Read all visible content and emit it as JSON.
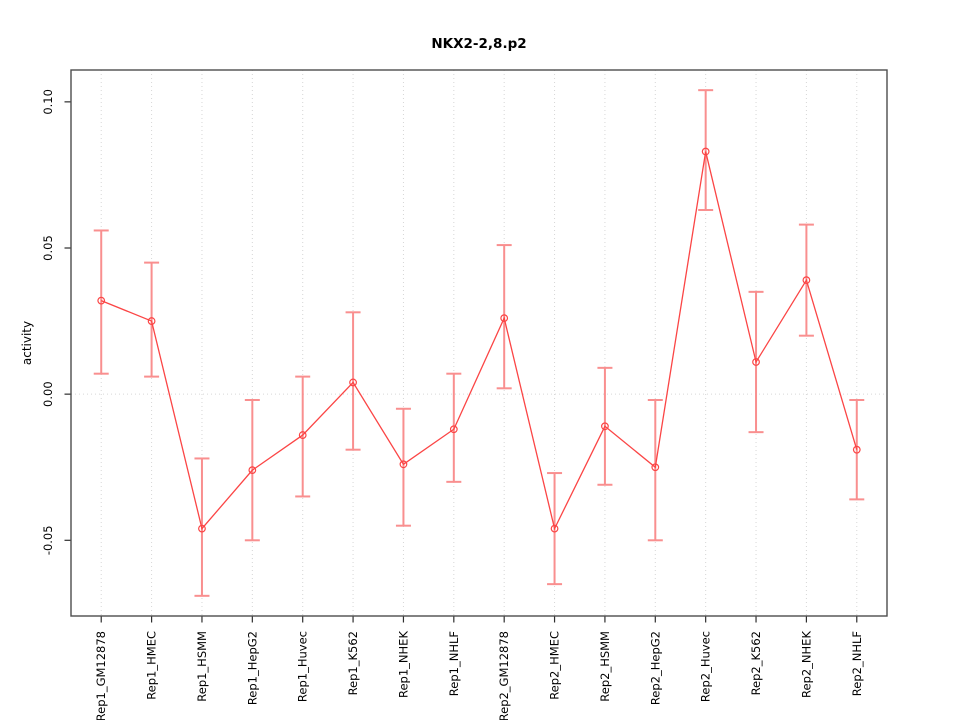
{
  "page": {
    "background": "#ffffff"
  },
  "chart_data": {
    "type": "line",
    "title": "NKX2-2,8.p2",
    "ylabel": "activity",
    "xlabel": "",
    "categories": [
      "Rep1_GM12878",
      "Rep1_HMEC",
      "Rep1_HSMM",
      "Rep1_HepG2",
      "Rep1_Huvec",
      "Rep1_K562",
      "Rep1_NHEK",
      "Rep1_NHLF",
      "Rep2_GM12878",
      "Rep2_HMEC",
      "Rep2_HSMM",
      "Rep2_HepG2",
      "Rep2_Huvec",
      "Rep2_K562",
      "Rep2_NHEK",
      "Rep2_NHLF"
    ],
    "series": [
      {
        "name": "activity",
        "values": [
          0.032,
          0.025,
          -0.046,
          -0.026,
          -0.014,
          0.004,
          -0.024,
          -0.012,
          0.026,
          -0.046,
          -0.011,
          -0.025,
          0.083,
          0.011,
          0.039,
          -0.019
        ],
        "upper": [
          0.056,
          0.045,
          -0.022,
          -0.002,
          0.006,
          0.028,
          -0.005,
          0.007,
          0.051,
          -0.027,
          0.009,
          -0.002,
          0.104,
          0.035,
          0.058,
          -0.002
        ],
        "lower": [
          0.007,
          0.006,
          -0.069,
          -0.05,
          -0.035,
          -0.019,
          -0.045,
          -0.03,
          0.002,
          -0.065,
          -0.031,
          -0.05,
          0.063,
          -0.013,
          0.02,
          -0.036
        ]
      }
    ],
    "yticks": [
      {
        "value": -0.05,
        "label": "-0.05"
      },
      {
        "value": 0.0,
        "label": "0.00"
      },
      {
        "value": 0.05,
        "label": "0.05"
      },
      {
        "value": 0.1,
        "label": "0.10"
      }
    ],
    "ylim": [
      -0.0759,
      0.1109
    ],
    "grid": {
      "vertical_at_categories": true,
      "horizontal_at_zero": true,
      "style": "dotted"
    },
    "legend": "none",
    "marker": "open-circle",
    "colors": {
      "line": "#fb4545",
      "point": "#fb4545",
      "error_bar": "#f98f8f",
      "grid": "#d6d6d6",
      "box": "#4d4d4d",
      "tick": "#2e2e2e",
      "text": "#000000"
    }
  }
}
